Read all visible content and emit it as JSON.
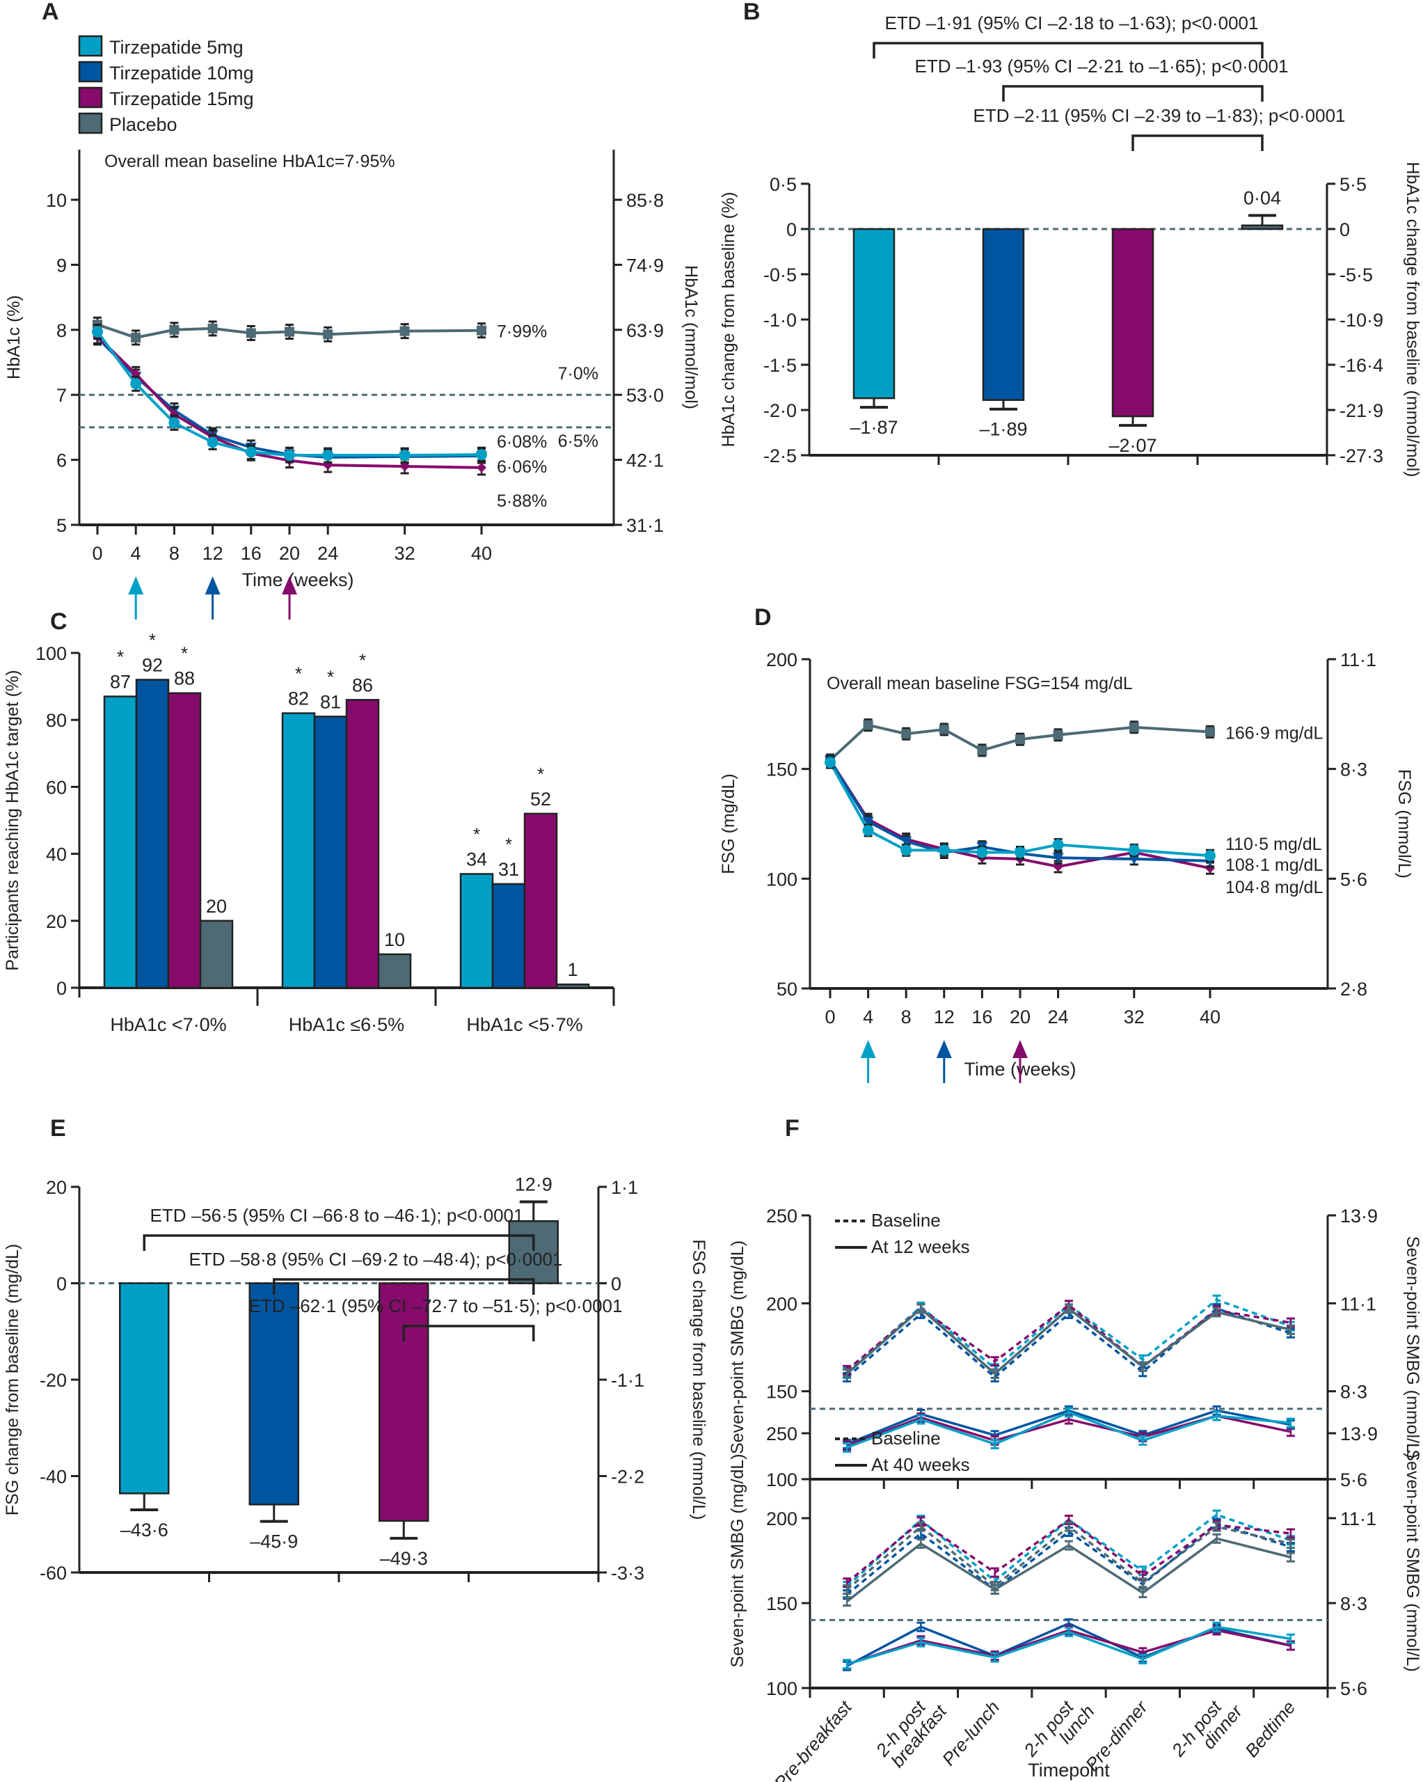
{
  "colors": {
    "tzp5": "#00a0c6",
    "tzp10": "#0055a0",
    "tzp15": "#860b6b",
    "placebo": "#4d6a75",
    "axis": "#222222",
    "threshold": "#4d6a75"
  },
  "legend": {
    "items": [
      {
        "key": "tzp5",
        "label": "Tirzepatide 5mg"
      },
      {
        "key": "tzp10",
        "label": "Tirzepatide 10mg"
      },
      {
        "key": "tzp15",
        "label": "Tirzepatide 15mg"
      },
      {
        "key": "placebo",
        "label": "Placebo"
      }
    ]
  },
  "chart_data": [
    {
      "panel": "A",
      "type": "line",
      "annotation": "Overall mean baseline HbA1c=7·95%",
      "xlabel": "Time (weeks)",
      "ylabel": "HbA1c (%)",
      "ylabel_right": "HbA1c (mmol/mol)",
      "x": [
        0,
        4,
        8,
        12,
        16,
        20,
        24,
        32,
        40
      ],
      "x_ticks": [
        "0",
        "4",
        "8",
        "12",
        "16",
        "20",
        "24",
        "32",
        "40"
      ],
      "ylim": [
        5,
        10.5
      ],
      "y_ticks": [
        "5",
        "6",
        "7",
        "8",
        "9",
        "10"
      ],
      "y_ticks_right": [
        "31·1",
        "42·1",
        "53·0",
        "63·9",
        "74·9",
        "85·8"
      ],
      "thresholds": [
        {
          "y": 7.0,
          "label": "7·0%"
        },
        {
          "y": 6.5,
          "label": "6·5%"
        }
      ],
      "dose_arrows": [
        {
          "x": 4,
          "key": "tzp5"
        },
        {
          "x": 12,
          "key": "tzp10"
        },
        {
          "x": 20,
          "key": "tzp15"
        }
      ],
      "series": [
        {
          "key": "placebo",
          "name": "Placebo",
          "values": [
            8.08,
            7.88,
            8.0,
            8.02,
            7.95,
            7.97,
            7.93,
            7.98,
            7.99
          ],
          "end_label": "7·99%"
        },
        {
          "key": "tzp10",
          "name": "Tirzepatide 10mg",
          "values": [
            7.88,
            7.28,
            6.76,
            6.38,
            6.19,
            6.08,
            6.04,
            6.05,
            6.06
          ],
          "end_label": "6·06%"
        },
        {
          "key": "tzp15",
          "name": "Tirzepatide 15mg",
          "values": [
            7.9,
            7.32,
            6.7,
            6.35,
            6.1,
            5.99,
            5.92,
            5.9,
            5.88
          ],
          "end_label": "5·88%"
        },
        {
          "key": "tzp5",
          "name": "Tirzepatide 5mg",
          "values": [
            7.97,
            7.17,
            6.57,
            6.27,
            6.12,
            6.07,
            6.07,
            6.07,
            6.08
          ],
          "end_label": "6·08%"
        }
      ]
    },
    {
      "panel": "B",
      "type": "bar",
      "ylabel": "HbA1c change from baseline (%)",
      "ylabel_right": "HbA1c change from baseline (mmol/mol)",
      "ylim": [
        -2.5,
        0.5
      ],
      "y_ticks": [
        "-2·5",
        "-2·0",
        "-1·5",
        "-1·0",
        "-0·5",
        "0",
        "0·5"
      ],
      "y_ticks_right": [
        "-27·3",
        "-21·9",
        "-16·4",
        "-10·9",
        "-5·5",
        "0",
        "5·5"
      ],
      "categories": [
        "Tirzepatide 5mg",
        "Tirzepatide 10mg",
        "Tirzepatide 15mg",
        "Placebo"
      ],
      "keys": [
        "tzp5",
        "tzp10",
        "tzp15",
        "placebo"
      ],
      "values": [
        -1.87,
        -1.89,
        -2.07,
        0.04
      ],
      "errors": [
        0.1,
        0.1,
        0.1,
        0.11
      ],
      "value_labels": [
        "–1·87",
        "–1·89",
        "–2·07",
        "0·04"
      ],
      "comparisons": [
        {
          "from": 0,
          "to": 3,
          "label": "ETD  –1·91 (95% CI –2·18 to –1·63); p<0·0001"
        },
        {
          "from": 1,
          "to": 3,
          "label": "ETD –1·93 (95% CI –2·21 to –1·65); p<0·0001"
        },
        {
          "from": 2,
          "to": 3,
          "label": "ETD –2·11 (95% CI –2·39 to –1·83); p<0·0001"
        }
      ]
    },
    {
      "panel": "C",
      "type": "bar",
      "ylabel": "Participants reaching HbA1c target (%)",
      "ylim": [
        0,
        100
      ],
      "y_ticks": [
        "0",
        "20",
        "40",
        "60",
        "80",
        "100"
      ],
      "categories": [
        "HbA1c <7·0%",
        "HbA1c ≤6·5%",
        "HbA1c <5·7%"
      ],
      "series": [
        {
          "key": "tzp5",
          "name": "Tirzepatide 5mg",
          "values": [
            87,
            82,
            34
          ],
          "significant": [
            true,
            true,
            true
          ]
        },
        {
          "key": "tzp10",
          "name": "Tirzepatide 10mg",
          "values": [
            92,
            81,
            31
          ],
          "significant": [
            true,
            true,
            true
          ]
        },
        {
          "key": "tzp15",
          "name": "Tirzepatide 15mg",
          "values": [
            88,
            86,
            52
          ],
          "significant": [
            true,
            true,
            true
          ]
        },
        {
          "key": "placebo",
          "name": "Placebo",
          "values": [
            20,
            10,
            1
          ],
          "significant": [
            false,
            false,
            false
          ]
        }
      ],
      "significance_marker": "*"
    },
    {
      "panel": "D",
      "type": "line",
      "annotation": "Overall mean baseline FSG=154 mg/dL",
      "xlabel": "Time (weeks)",
      "ylabel": "FSG (mg/dL)",
      "ylabel_right": "FSG (mmol/L)",
      "x": [
        0,
        4,
        8,
        12,
        16,
        20,
        24,
        32,
        40
      ],
      "x_ticks": [
        "0",
        "4",
        "8",
        "12",
        "16",
        "20",
        "24",
        "32",
        "40"
      ],
      "ylim": [
        50,
        200
      ],
      "y_ticks": [
        "50",
        "100",
        "150",
        "200"
      ],
      "y_ticks_right": [
        "2·8",
        "5·6",
        "8·3",
        "11·1"
      ],
      "dose_arrows": [
        {
          "x": 4,
          "key": "tzp5"
        },
        {
          "x": 12,
          "key": "tzp10"
        },
        {
          "x": 20,
          "key": "tzp15"
        }
      ],
      "series": [
        {
          "key": "placebo",
          "name": "Placebo",
          "values": [
            154,
            170,
            166,
            168,
            158.5,
            163.5,
            165.5,
            169,
            166.9
          ],
          "end_label": "166·9 mg/dL"
        },
        {
          "key": "tzp15",
          "name": "Tirzepatide 15mg",
          "values": [
            154,
            127,
            118,
            113.5,
            109.5,
            109,
            105.5,
            112,
            104.8
          ],
          "end_label": "104·8 mg/dL"
        },
        {
          "key": "tzp10",
          "name": "Tirzepatide 10mg",
          "values": [
            154,
            126,
            117,
            112,
            114.5,
            111.5,
            109.5,
            109,
            108.1
          ],
          "end_label": "108·1 mg/dL"
        },
        {
          "key": "tzp5",
          "name": "Tirzepatide 5mg",
          "values": [
            153,
            122,
            113,
            113,
            112,
            112,
            115.5,
            113,
            110.5
          ],
          "end_label": "110·5 mg/dL"
        }
      ]
    },
    {
      "panel": "E",
      "type": "bar",
      "ylabel": "FSG change from baseline (mg/dL)",
      "ylabel_right": "FSG change from baseline (mmol/L)",
      "ylim": [
        -60,
        20
      ],
      "y_ticks": [
        "-60",
        "-40",
        "-20",
        "0",
        "20"
      ],
      "y_ticks_right": [
        "-3·3",
        "-2·2",
        "-1·1",
        "0",
        "1·1"
      ],
      "categories": [
        "Tirzepatide 5mg",
        "Tirzepatide 10mg",
        "Tirzepatide 15mg",
        "Placebo"
      ],
      "keys": [
        "tzp5",
        "tzp10",
        "tzp15",
        "placebo"
      ],
      "values": [
        -43.6,
        -45.9,
        -49.3,
        12.9
      ],
      "errors": [
        3.4,
        3.5,
        3.6,
        4.0
      ],
      "value_labels": [
        "–43·6",
        "–45·9",
        "–49·3",
        "12·9"
      ],
      "comparisons": [
        {
          "from": 0,
          "to": 3,
          "label": "ETD –56·5 (95% CI –66·8 to –46·1); p<0·0001"
        },
        {
          "from": 1,
          "to": 3,
          "label": "ETD –58·8 (95% CI –69·2 to –48·4); p<0·0001"
        },
        {
          "from": 2,
          "to": 3,
          "label": "ETD –62·1 (95% CI –72·7 to –51·5); p<0·0001"
        }
      ]
    },
    {
      "panel": "F",
      "type": "line",
      "xlabel": "Timepoint",
      "ylabel": "Seven-point SMBG (mg/dL)",
      "ylabel_right": "Seven-point SMBG (mmol/L)",
      "categories": [
        "Pre-breakfast",
        "2-h post breakfast",
        "Pre-lunch",
        "2-h post lunch",
        "Pre-dinner",
        "2-h post dinner",
        "Bedtime"
      ],
      "ylim": [
        100,
        250
      ],
      "y_ticks": [
        "100",
        "150",
        "200",
        "250"
      ],
      "y_ticks_right": [
        "5·6",
        "8·3",
        "11·1",
        "13·9"
      ],
      "threshold": 140,
      "subplots": [
        {
          "legend": [
            {
              "style": "dashed",
              "label": "Baseline"
            },
            {
              "style": "solid",
              "label": "At 12 weeks"
            }
          ],
          "baseline": [
            {
              "key": "tzp5",
              "values": [
                161,
                198,
                163,
                199,
                168,
                202,
                187
              ]
            },
            {
              "key": "tzp10",
              "values": [
                158,
                194,
                158,
                194,
                161,
                197,
                183
              ]
            },
            {
              "key": "tzp15",
              "values": [
                162,
                197,
                167,
                199,
                164,
                196,
                189
              ]
            },
            {
              "key": "placebo",
              "values": [
                160,
                197,
                160,
                197,
                164,
                195,
                185
              ]
            }
          ],
          "followup": [
            {
              "key": "placebo",
              "values": [
                160,
                197,
                160,
                197,
                164,
                195,
                185
              ]
            },
            {
              "key": "tzp10",
              "values": [
                120,
                137,
                125,
                139,
                125,
                139,
                131
              ]
            },
            {
              "key": "tzp15",
              "values": [
                119,
                135,
                122,
                134,
                124,
                136,
                127
              ]
            },
            {
              "key": "tzp5",
              "values": [
                118,
                134,
                120,
                138,
                122,
                136,
                132
              ]
            }
          ]
        },
        {
          "legend": [
            {
              "style": "dashed",
              "label": "Baseline"
            },
            {
              "style": "solid",
              "label": "At 40 weeks"
            }
          ],
          "baseline": [
            {
              "key": "tzp5",
              "values": [
                160,
                199,
                163,
                199,
                169,
                202,
                187
              ]
            },
            {
              "key": "tzp10",
              "values": [
                155,
                191,
                158,
                192,
                161,
                197,
                183
              ]
            },
            {
              "key": "tzp15",
              "values": [
                162,
                198,
                168,
                199,
                166,
                196,
                191
              ]
            },
            {
              "key": "placebo",
              "values": [
                158,
                195,
                160,
                195,
                162,
                195,
                185
              ]
            }
          ],
          "followup": [
            {
              "key": "placebo",
              "values": [
                151,
                185,
                158,
                184,
                156,
                188,
                177
              ]
            },
            {
              "key": "tzp10",
              "values": [
                113,
                136,
                119,
                138,
                118,
                135,
                125
              ]
            },
            {
              "key": "tzp15",
              "values": [
                114,
                128,
                119,
                134,
                121,
                134,
                125
              ]
            },
            {
              "key": "tzp5",
              "values": [
                114,
                127,
                118,
                133,
                117,
                136,
                129
              ]
            }
          ]
        }
      ]
    }
  ]
}
